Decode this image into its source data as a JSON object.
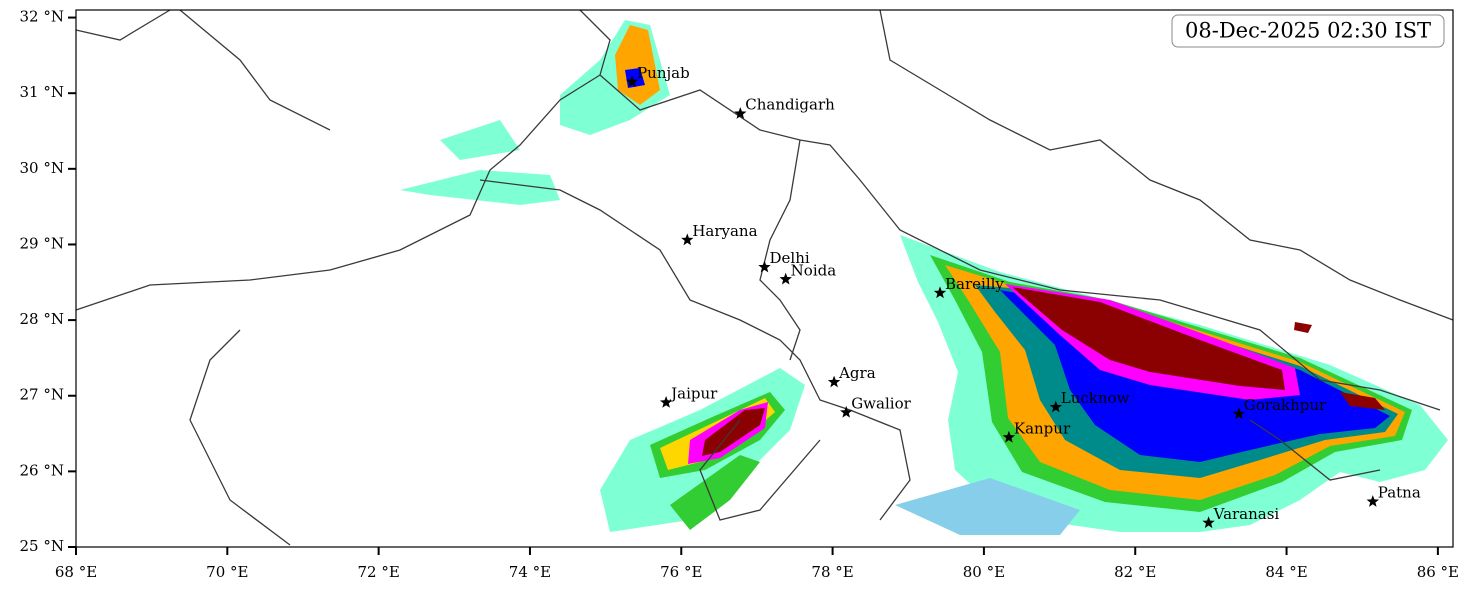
{
  "timestamp": "08-Dec-2025 02:30 IST",
  "map": {
    "xlim": [
      68,
      86.2
    ],
    "ylim": [
      25,
      32.1
    ],
    "xticks": [
      {
        "value": 68,
        "label": "68 °E"
      },
      {
        "value": 70,
        "label": "70 °E"
      },
      {
        "value": 72,
        "label": "72 °E"
      },
      {
        "value": 74,
        "label": "74 °E"
      },
      {
        "value": 76,
        "label": "76 °E"
      },
      {
        "value": 78,
        "label": "78 °E"
      },
      {
        "value": 80,
        "label": "80 °E"
      },
      {
        "value": 82,
        "label": "82 °E"
      },
      {
        "value": 84,
        "label": "84 °E"
      },
      {
        "value": 86,
        "label": "86 °E"
      }
    ],
    "yticks": [
      {
        "value": 25,
        "label": "25 °N"
      },
      {
        "value": 26,
        "label": "26 °N"
      },
      {
        "value": 27,
        "label": "27 °N"
      },
      {
        "value": 28,
        "label": "28 °N"
      },
      {
        "value": 29,
        "label": "29 °N"
      },
      {
        "value": 30,
        "label": "30 °N"
      },
      {
        "value": 31,
        "label": "31 °N"
      },
      {
        "value": 32,
        "label": "32 °N"
      }
    ]
  },
  "cities": [
    {
      "name": "Punjab",
      "lon": 75.35,
      "lat": 31.15
    },
    {
      "name": "Chandigarh",
      "lon": 76.78,
      "lat": 30.73
    },
    {
      "name": "Haryana",
      "lon": 76.08,
      "lat": 29.06
    },
    {
      "name": "Delhi",
      "lon": 77.1,
      "lat": 28.7
    },
    {
      "name": "Noida",
      "lon": 77.38,
      "lat": 28.54
    },
    {
      "name": "Bareilly",
      "lon": 79.42,
      "lat": 28.36
    },
    {
      "name": "Agra",
      "lon": 78.02,
      "lat": 27.18
    },
    {
      "name": "Jaipur",
      "lon": 75.8,
      "lat": 26.91
    },
    {
      "name": "Gwalior",
      "lon": 78.18,
      "lat": 26.78
    },
    {
      "name": "Lucknow",
      "lon": 80.95,
      "lat": 26.85
    },
    {
      "name": "Gorakhpur",
      "lon": 83.37,
      "lat": 26.76
    },
    {
      "name": "Kanpur",
      "lon": 80.33,
      "lat": 26.45
    },
    {
      "name": "Varanasi",
      "lon": 82.97,
      "lat": 25.32
    },
    {
      "name": "Patna",
      "lon": 85.14,
      "lat": 25.6
    }
  ]
}
